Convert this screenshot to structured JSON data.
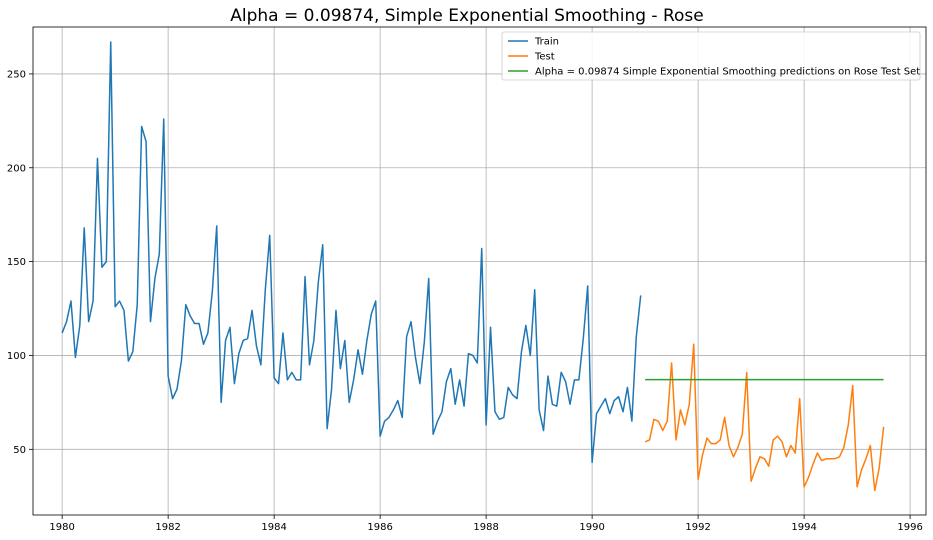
{
  "chart_data": {
    "type": "line",
    "title": "Alpha = 0.09874, Simple Exponential Smoothing - Rose",
    "xlabel": "",
    "ylabel": "",
    "xlim": [
      1979.45,
      1996.3
    ],
    "ylim": [
      15,
      275
    ],
    "x_ticks": [
      1980,
      1982,
      1984,
      1986,
      1988,
      1990,
      1992,
      1994,
      1996
    ],
    "y_ticks": [
      50,
      100,
      150,
      200,
      250
    ],
    "grid": true,
    "legend_position": "top-right",
    "colors": {
      "train": "#1f77b4",
      "test": "#ff7f0e",
      "prediction": "#2ca02c"
    },
    "series": [
      {
        "name": "Train",
        "start": 1980.0,
        "step": 0.083333,
        "values": [
          112,
          118,
          129,
          99,
          116,
          168,
          118,
          129,
          205,
          147,
          150,
          267,
          126,
          129,
          124,
          97,
          102,
          127,
          222,
          214,
          118,
          141,
          154,
          226,
          89,
          77,
          82,
          97,
          127,
          121,
          117,
          117,
          106,
          112,
          134,
          169,
          75,
          108,
          115,
          85,
          101,
          108,
          109,
          124,
          105,
          95,
          135,
          164,
          88,
          85,
          112,
          87,
          91,
          87,
          87,
          142,
          95,
          108,
          139,
          159,
          61,
          82,
          124,
          93,
          108,
          75,
          87,
          103,
          90,
          108,
          122,
          129,
          57,
          65,
          67,
          71,
          76,
          67,
          110,
          118,
          99,
          85,
          107,
          141,
          58,
          65,
          70,
          86,
          93,
          74,
          87,
          73,
          101,
          100,
          96,
          157,
          63,
          115,
          70,
          66,
          67,
          83,
          79,
          77,
          102,
          116,
          100,
          135,
          71,
          60,
          89,
          74,
          73,
          91,
          86,
          74,
          87,
          87,
          109,
          137,
          43,
          69,
          73,
          77,
          69,
          76,
          78,
          70,
          83,
          65,
          110,
          132
        ]
      },
      {
        "name": "Test",
        "start": 1991.0,
        "step": 0.083333,
        "values": [
          54,
          55,
          66,
          65,
          60,
          65,
          96,
          55,
          71,
          63,
          74,
          106,
          34,
          47,
          56,
          53,
          53,
          55,
          67,
          52,
          46,
          51,
          58,
          91,
          33,
          40,
          46,
          45,
          41,
          55,
          57,
          54,
          46,
          52,
          48,
          77,
          30,
          35,
          42,
          48,
          44,
          45,
          45,
          45,
          46,
          51,
          63,
          84,
          30,
          39,
          45,
          52,
          28,
          40,
          62
        ]
      },
      {
        "name": "Alpha = 0.09874 Simple Exponential Smoothing predictions on Rose Test Set",
        "start": 1991.0,
        "step": 0.083333,
        "constant": 87.1,
        "count": 55
      }
    ]
  }
}
